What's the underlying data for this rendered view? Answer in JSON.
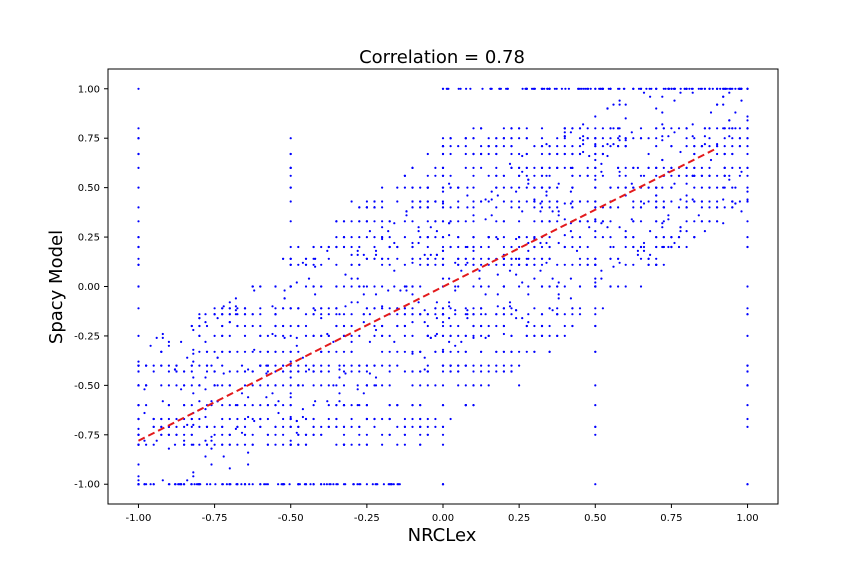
{
  "chart_data": {
    "type": "scatter",
    "title": "Correlation = 0.78",
    "xlabel": "NRCLex",
    "ylabel": "Spacy Model",
    "xlim": [
      -1.1,
      1.1
    ],
    "ylim": [
      -1.1,
      1.1
    ],
    "xticks": [
      "-1.00",
      "-0.75",
      "-0.50",
      "-0.25",
      "0.00",
      "0.25",
      "0.50",
      "0.75",
      "1.00"
    ],
    "xtick_values": [
      -1.0,
      -0.75,
      -0.5,
      -0.25,
      0.0,
      0.25,
      0.5,
      0.75,
      1.0
    ],
    "yticks": [
      "-1.00",
      "-0.75",
      "-0.50",
      "-0.25",
      "0.00",
      "0.25",
      "0.50",
      "0.75",
      "1.00"
    ],
    "ytick_values": [
      -1.0,
      -0.75,
      -0.5,
      -0.25,
      0.0,
      0.25,
      0.5,
      0.75,
      1.0
    ],
    "grid": false,
    "colors": {
      "points": "#0000ff",
      "trendline": "#e31a1c"
    },
    "series": [
      {
        "values_sample": [
          {
            "x": -1.0,
            "y": 1.0
          },
          {
            "x": -1.0,
            "y": 0.75
          },
          {
            "x": -1.0,
            "y": 0.5
          },
          {
            "x": -1.0,
            "y": 0.25
          },
          {
            "x": -1.0,
            "y": 0.0
          },
          {
            "x": -1.0,
            "y": -0.25
          },
          {
            "x": -1.0,
            "y": -0.5
          },
          {
            "x": -1.0,
            "y": -0.75
          },
          {
            "x": -1.0,
            "y": -1.0
          },
          {
            "x": -0.9,
            "y": -0.6
          },
          {
            "x": -0.85,
            "y": -0.78
          },
          {
            "x": -0.8,
            "y": -0.5
          },
          {
            "x": -0.75,
            "y": -0.43
          },
          {
            "x": -0.7,
            "y": -0.33
          },
          {
            "x": -0.6,
            "y": -0.2
          },
          {
            "x": -0.5,
            "y": 0.0
          },
          {
            "x": -0.4,
            "y": 0.2
          },
          {
            "x": -0.3,
            "y": 0.43
          },
          {
            "x": -0.2,
            "y": 0.14
          },
          {
            "x": -0.1,
            "y": 0.33
          },
          {
            "x": 0.0,
            "y": 0.0
          },
          {
            "x": 0.0,
            "y": 1.0
          },
          {
            "x": 0.0,
            "y": -1.0
          },
          {
            "x": 0.1,
            "y": 0.6
          },
          {
            "x": 0.2,
            "y": 0.5
          },
          {
            "x": 0.3,
            "y": 0.71
          },
          {
            "x": 0.4,
            "y": 0.8
          },
          {
            "x": 0.5,
            "y": 0.75
          },
          {
            "x": 0.6,
            "y": 0.85
          },
          {
            "x": 0.7,
            "y": 0.9
          },
          {
            "x": 0.8,
            "y": 1.0
          },
          {
            "x": 0.9,
            "y": 0.8
          },
          {
            "x": 1.0,
            "y": 1.0
          },
          {
            "x": 1.0,
            "y": 0.5
          },
          {
            "x": 1.0,
            "y": 0.0
          },
          {
            "x": 1.0,
            "y": -0.5
          },
          {
            "x": 1.0,
            "y": -1.0
          },
          {
            "x": 0.5,
            "y": -0.6
          },
          {
            "x": 0.2,
            "y": -0.4
          },
          {
            "x": 0.25,
            "y": -0.5
          }
        ]
      }
    ],
    "trendline": {
      "x_start": -1.0,
      "x_end": 0.9,
      "y_start": -0.78,
      "y_end": 0.7
    },
    "marker": "small dots",
    "trendline_style": "dashed"
  }
}
